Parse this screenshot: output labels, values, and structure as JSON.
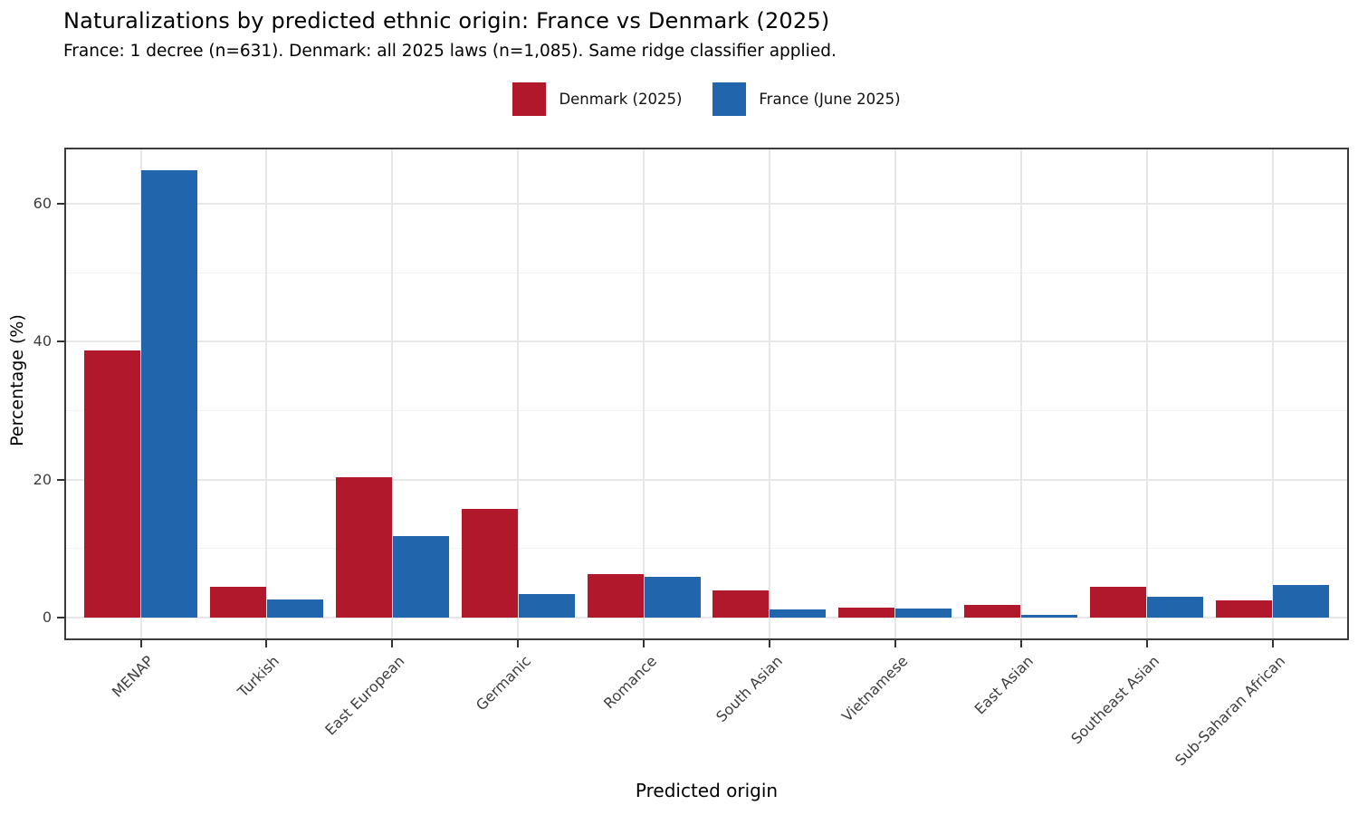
{
  "header": {
    "title": "Naturalizations by predicted ethnic origin: France vs Denmark (2025)",
    "subtitle": "France: 1 decree (n=631). Denmark: all 2025 laws (n=1,085). Same ridge classifier applied."
  },
  "chart_data": {
    "type": "bar",
    "title": "Naturalizations by predicted ethnic origin: France vs Denmark (2025)",
    "subtitle": "France: 1 decree (n=631). Denmark: all 2025 laws (n=1,085). Same ridge classifier applied.",
    "categories": [
      "MENAP",
      "Turkish",
      "East European",
      "Germanic",
      "Romance",
      "South Asian",
      "Vietnamese",
      "East Asian",
      "Southeast Asian",
      "Sub-Saharan African"
    ],
    "series": [
      {
        "name": "Denmark (2025)",
        "color": "#b2182b",
        "values": [
          38.7,
          4.5,
          20.3,
          15.7,
          6.3,
          3.9,
          1.5,
          1.8,
          4.5,
          2.5
        ]
      },
      {
        "name": "France (June 2025)",
        "color": "#2166ac",
        "values": [
          64.8,
          2.6,
          11.8,
          3.4,
          5.9,
          1.2,
          1.3,
          0.4,
          3.0,
          4.7
        ]
      }
    ],
    "xlabel": "Predicted origin",
    "ylabel": "Percentage (%)",
    "ylim": [
      0,
      68.5
    ],
    "yticks": [
      0,
      20,
      40,
      60
    ],
    "yticks_minor": [
      10,
      30,
      50
    ],
    "grid": true,
    "legend_position": "top-center",
    "bar_orientation": "vertical",
    "bar_grouping": "dodged"
  }
}
